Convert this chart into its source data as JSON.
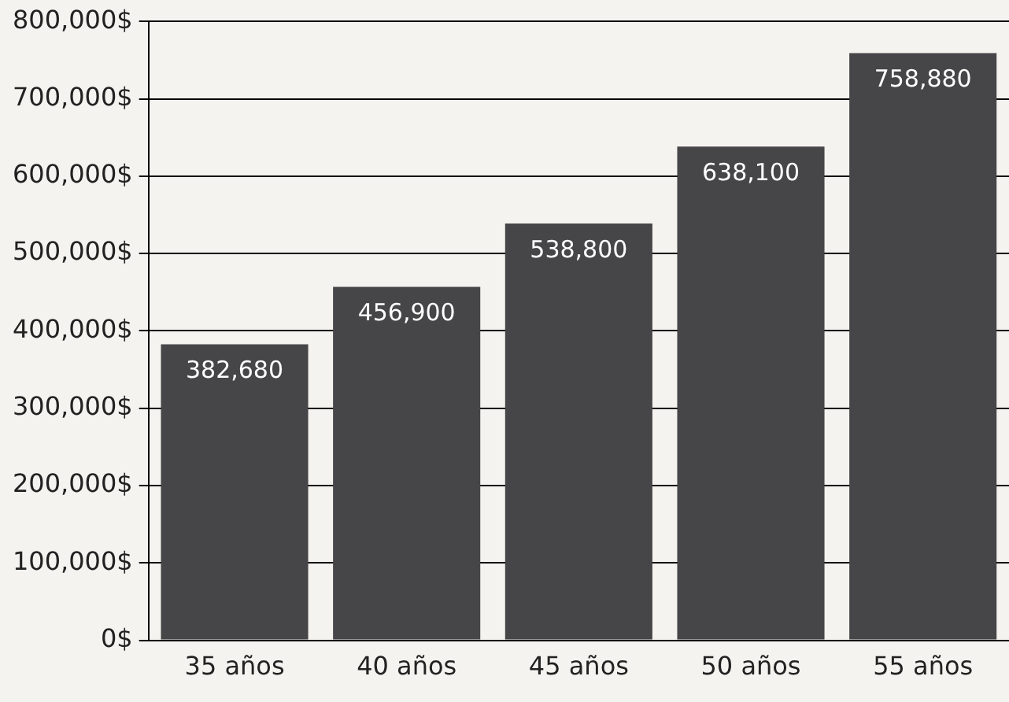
{
  "chart_data": {
    "type": "bar",
    "categories": [
      "35 años",
      "40 años",
      "45 años",
      "50 años",
      "55 años"
    ],
    "values": [
      382680,
      456900,
      538800,
      638100,
      758880
    ],
    "value_labels": [
      "382,680",
      "456,900",
      "538,800",
      "638,100",
      "758,880"
    ],
    "color": "#464547",
    "ylim": [
      0,
      800000
    ],
    "yticks": [
      {
        "value": 0,
        "label": "0$"
      },
      {
        "value": 100000,
        "label": "100,000$"
      },
      {
        "value": 200000,
        "label": "200,000$"
      },
      {
        "value": 300000,
        "label": "300,000$"
      },
      {
        "value": 400000,
        "label": "400,000$"
      },
      {
        "value": 500000,
        "label": "500,000$"
      },
      {
        "value": 600000,
        "label": "600,000$"
      },
      {
        "value": 700000,
        "label": "700,000$"
      },
      {
        "value": 800000,
        "label": "800,000$"
      }
    ],
    "grid": "y",
    "legend": false
  }
}
